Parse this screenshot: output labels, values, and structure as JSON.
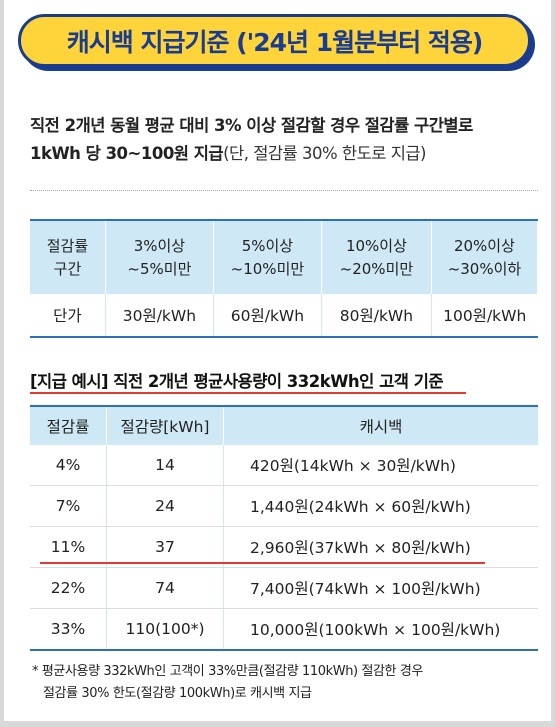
{
  "title": "캐시백 지급기준 ('24년 1월분부터 적용)",
  "intro": {
    "line1": "직전 2개년 동월 평균 대비 3% 이상 절감할 경우 절감률 구간별로",
    "line2_bold": "1kWh 당 30~100원 지급",
    "line2_normal": "(단, 절감률 30% 한도로 지급)"
  },
  "rate_table": {
    "header_label_1": "절감률",
    "header_label_2": "구간",
    "bands": [
      {
        "top": "3%이상",
        "bottom": "~5%미만"
      },
      {
        "top": "5%이상",
        "bottom": "~10%미만"
      },
      {
        "top": "10%이상",
        "bottom": "~20%미만"
      },
      {
        "top": "20%이상",
        "bottom": "~30%이하"
      }
    ],
    "row_label": "단가",
    "prices": [
      "30원/kWh",
      "60원/kWh",
      "80원/kWh",
      "100원/kWh"
    ]
  },
  "example": {
    "title": "[지급 예시] 직전 2개년 평균사용량이 332kWh인 고객 기준",
    "headers": [
      "절감률",
      "절감량[kWh]",
      "캐시백"
    ],
    "rows": [
      [
        "4%",
        "14",
        "420원(14kWh × 30원/kWh)"
      ],
      [
        "7%",
        "24",
        "1,440원(24kWh × 60원/kWh)"
      ],
      [
        "11%",
        "37",
        "2,960원(37kWh × 80원/kWh)"
      ],
      [
        "22%",
        "74",
        "7,400원(74kWh × 100원/kWh)"
      ],
      [
        "33%",
        "110(100*)",
        "10,000원(100kWh × 100원/kWh)"
      ]
    ]
  },
  "footnote": {
    "line1": "* 평균사용량 332kWh인 고객이 33%만큼(절감량 110kWh) 절감한 경우",
    "line2": "절감률 30% 한도(절감량 100kWh)로 캐시백 지급"
  },
  "colors": {
    "banner_bg": "#ffd43b",
    "banner_text": "#1a3c8e",
    "table_header_bg": "#cfe8f6",
    "table_border": "#2c6fbf",
    "highlight_red": "#e53935"
  }
}
